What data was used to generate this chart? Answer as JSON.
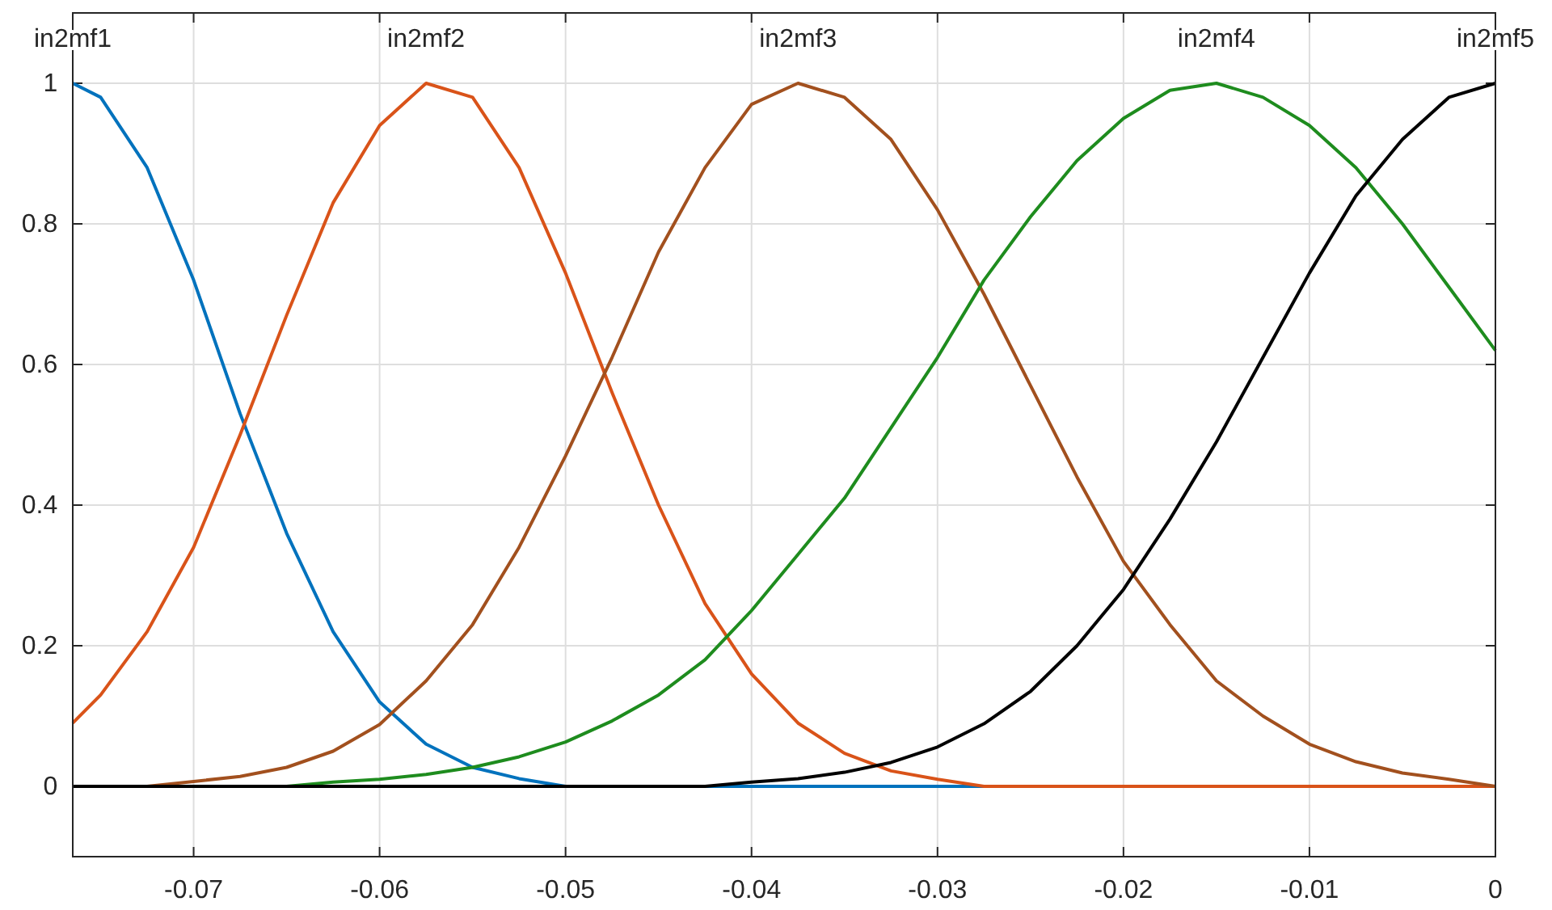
{
  "chart_data": {
    "type": "line",
    "x": [
      -0.0765,
      -0.075,
      -0.0725,
      -0.07,
      -0.0675,
      -0.065,
      -0.0625,
      -0.06,
      -0.0575,
      -0.055,
      -0.0525,
      -0.05,
      -0.0475,
      -0.045,
      -0.0425,
      -0.04,
      -0.0375,
      -0.035,
      -0.0325,
      -0.03,
      -0.0275,
      -0.025,
      -0.0225,
      -0.02,
      -0.0175,
      -0.015,
      -0.0125,
      -0.01,
      -0.0075,
      -0.005,
      -0.0025,
      0
    ],
    "series": [
      {
        "color": "#0072bd",
        "values": [
          1,
          0.98,
          0.88,
          0.72,
          0.53,
          0.36,
          0.22,
          0.12,
          0.06,
          0.027,
          0.011,
          0,
          0,
          0,
          0,
          0,
          0,
          0,
          0,
          0,
          0,
          null,
          null,
          null,
          null,
          null,
          null,
          null,
          null,
          null,
          null,
          null
        ]
      },
      {
        "color": "#d95319",
        "values": [
          0.09,
          0.13,
          0.22,
          0.34,
          0.5,
          0.67,
          0.83,
          0.94,
          1,
          0.98,
          0.88,
          0.73,
          0.56,
          0.4,
          0.26,
          0.16,
          0.09,
          0.047,
          0.022,
          0.01,
          0,
          0,
          0,
          0,
          0,
          0,
          0,
          0,
          0,
          0,
          0,
          0
        ]
      },
      {
        "color": "#a2501e",
        "values": [
          0,
          0,
          0,
          0.007,
          0.014,
          0.027,
          0.05,
          0.088,
          0.15,
          0.23,
          0.34,
          0.47,
          0.61,
          0.76,
          0.88,
          0.97,
          1,
          0.98,
          0.92,
          0.82,
          0.7,
          0.57,
          0.44,
          0.32,
          0.23,
          0.15,
          0.1,
          0.06,
          0.035,
          0.019,
          0.01,
          0
        ]
      },
      {
        "color": "#1e8c1e",
        "values": [
          null,
          null,
          null,
          null,
          0,
          0,
          0.006,
          0.01,
          0.017,
          0.027,
          0.042,
          0.063,
          0.093,
          0.13,
          0.18,
          0.25,
          0.33,
          0.41,
          0.51,
          0.61,
          0.72,
          0.81,
          0.89,
          0.95,
          0.99,
          1,
          0.98,
          0.94,
          0.88,
          0.8,
          0.71,
          0.62
        ]
      },
      {
        "color": "#000000",
        "values": [
          0,
          0,
          0,
          0,
          0,
          0,
          0,
          0,
          0,
          0,
          0,
          0,
          0,
          0,
          0,
          0.006,
          0.011,
          0.02,
          0.034,
          0.056,
          0.089,
          0.135,
          0.2,
          0.28,
          0.38,
          0.49,
          0.61,
          0.73,
          0.84,
          0.92,
          0.98,
          1
        ]
      }
    ],
    "xlim": [
      -0.0765,
      0
    ],
    "xticks": [
      -0.07,
      -0.06,
      -0.05,
      -0.04,
      -0.03,
      -0.02,
      -0.01,
      0
    ],
    "ylim": [
      -0.1,
      1.1
    ],
    "yticks": [
      0,
      0.2,
      0.4,
      0.6,
      0.8,
      1
    ],
    "grid": true,
    "marker": "none",
    "line_style": "solid",
    "annotations": [
      "in2mf1",
      "in2mf2",
      "in2mf3",
      "in2mf4",
      "in2mf5"
    ]
  }
}
